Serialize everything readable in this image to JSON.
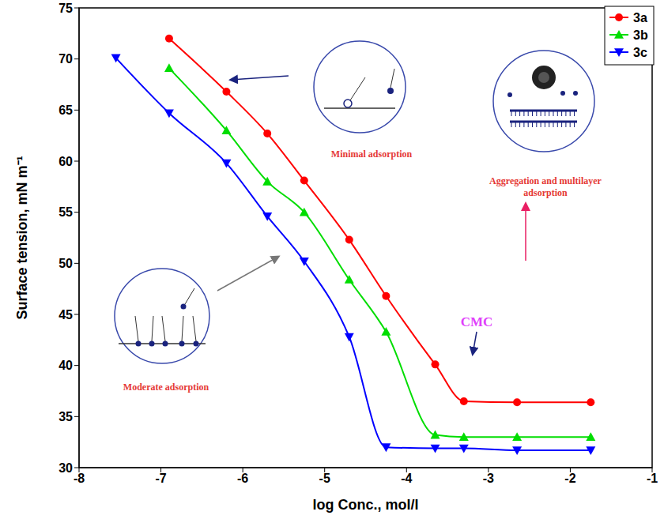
{
  "chart_data": {
    "type": "line",
    "x_label": "log Conc., mol/l",
    "y_label": "Surface tension, mN m⁻¹",
    "xlim": [
      -8,
      -1
    ],
    "xticks": [
      -8,
      -7,
      -6,
      -5,
      -4,
      -3,
      -2,
      -1
    ],
    "ylim": [
      30,
      75
    ],
    "yticks": [
      30,
      35,
      40,
      45,
      50,
      55,
      60,
      65,
      70,
      75
    ],
    "grid": false,
    "legend": "upper right",
    "annotations": [
      "Minimal adsorption",
      "Moderate adsorption",
      "Aggregation and multilayer adsorption",
      "CMC"
    ],
    "series": [
      {
        "name": "3a",
        "color": "#ff0000",
        "marker": "circle",
        "x": [
          -6.9,
          -6.2,
          -5.7,
          -5.25,
          -4.7,
          -4.25,
          -3.65,
          -3.3,
          -2.65,
          -1.75
        ],
        "values": [
          72,
          66.8,
          62.7,
          58.1,
          52.3,
          46.8,
          40.1,
          36.5,
          36.4,
          36.4
        ]
      },
      {
        "name": "3b",
        "color": "#00dd00",
        "marker": "triangle-up",
        "x": [
          -6.9,
          -6.2,
          -5.7,
          -5.25,
          -4.7,
          -4.25,
          -3.65,
          -3.3,
          -2.65,
          -1.75
        ],
        "values": [
          69.1,
          63,
          58,
          55,
          48.4,
          43.3,
          33.2,
          33,
          33,
          33
        ]
      },
      {
        "name": "3c",
        "color": "#0000ff",
        "marker": "triangle-down",
        "x": [
          -7.55,
          -6.9,
          -6.2,
          -5.7,
          -5.25,
          -4.7,
          -4.25,
          -3.65,
          -3.3,
          -2.65,
          -1.75
        ],
        "values": [
          70.1,
          64.7,
          59.8,
          54.6,
          50.2,
          42.8,
          32,
          31.9,
          31.9,
          31.7,
          31.7
        ]
      }
    ]
  }
}
